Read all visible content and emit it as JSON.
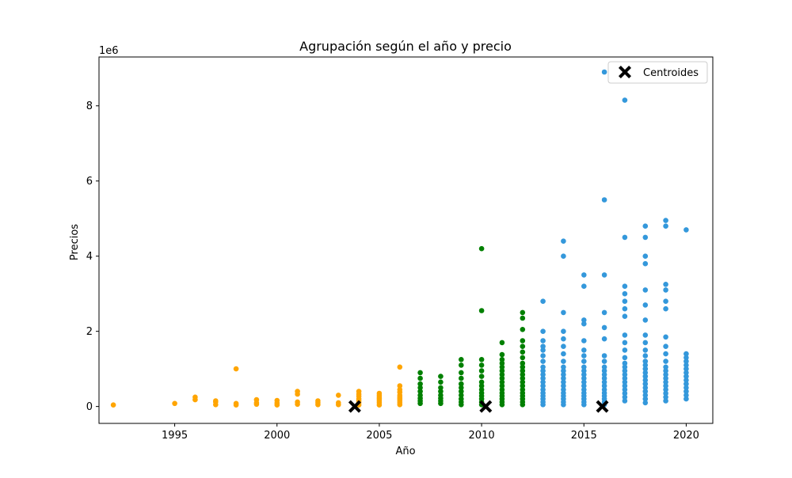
{
  "chart_data": {
    "type": "scatter",
    "title": "Agrupación según el año y precio",
    "xlabel": "Año",
    "ylabel": "Precios",
    "y_offset_label": "1e6",
    "xlim": [
      1991.3,
      2021.3
    ],
    "ylim": [
      -0.45,
      9.3
    ],
    "x_ticks": [
      1995,
      2000,
      2005,
      2010,
      2015,
      2020
    ],
    "y_ticks": [
      0,
      2,
      4,
      6,
      8
    ],
    "grid": false,
    "legend": {
      "placement": "top-right",
      "entries": [
        "Centroides"
      ]
    },
    "colors": {
      "cluster_early": "#ffa500",
      "cluster_mid": "#008000",
      "cluster_late": "#3498db",
      "centroid": "#000000"
    },
    "series": [
      {
        "color": "#ffa500",
        "points": [
          [
            1992,
            0.04
          ],
          [
            1995,
            0.08
          ],
          [
            1996,
            0.18
          ],
          [
            1996,
            0.25
          ],
          [
            1997,
            0.05
          ],
          [
            1997,
            0.12
          ],
          [
            1997,
            0.15
          ],
          [
            1998,
            0.04
          ],
          [
            1998,
            0.08
          ],
          [
            1998,
            1.0
          ],
          [
            1999,
            0.06
          ],
          [
            1999,
            0.1
          ],
          [
            1999,
            0.18
          ],
          [
            2000,
            0.04
          ],
          [
            2000,
            0.09
          ],
          [
            2000,
            0.16
          ],
          [
            2001,
            0.06
          ],
          [
            2001,
            0.12
          ],
          [
            2001,
            0.33
          ],
          [
            2001,
            0.4
          ],
          [
            2002,
            0.05
          ],
          [
            2002,
            0.1
          ],
          [
            2002,
            0.15
          ],
          [
            2003,
            0.05
          ],
          [
            2003,
            0.1
          ],
          [
            2003,
            0.3
          ],
          [
            2004,
            0.04
          ],
          [
            2004,
            0.1
          ],
          [
            2004,
            0.15
          ],
          [
            2004,
            0.2
          ],
          [
            2004,
            0.27
          ],
          [
            2004,
            0.33
          ],
          [
            2004,
            0.4
          ],
          [
            2005,
            0.04
          ],
          [
            2005,
            0.1
          ],
          [
            2005,
            0.15
          ],
          [
            2005,
            0.2
          ],
          [
            2005,
            0.25
          ],
          [
            2005,
            0.3
          ],
          [
            2005,
            0.35
          ],
          [
            2006,
            0.05
          ],
          [
            2006,
            0.1
          ],
          [
            2006,
            0.15
          ],
          [
            2006,
            0.2
          ],
          [
            2006,
            0.25
          ],
          [
            2006,
            0.3
          ],
          [
            2006,
            0.38
          ],
          [
            2006,
            0.45
          ],
          [
            2006,
            0.55
          ],
          [
            2006,
            1.05
          ]
        ]
      },
      {
        "color": "#008000",
        "points": [
          [
            2007,
            0.08
          ],
          [
            2007,
            0.15
          ],
          [
            2007,
            0.22
          ],
          [
            2007,
            0.3
          ],
          [
            2007,
            0.4
          ],
          [
            2007,
            0.5
          ],
          [
            2007,
            0.6
          ],
          [
            2007,
            0.75
          ],
          [
            2007,
            0.9
          ],
          [
            2008,
            0.08
          ],
          [
            2008,
            0.15
          ],
          [
            2008,
            0.22
          ],
          [
            2008,
            0.3
          ],
          [
            2008,
            0.4
          ],
          [
            2008,
            0.5
          ],
          [
            2008,
            0.65
          ],
          [
            2008,
            0.8
          ],
          [
            2009,
            0.05
          ],
          [
            2009,
            0.12
          ],
          [
            2009,
            0.2
          ],
          [
            2009,
            0.3
          ],
          [
            2009,
            0.4
          ],
          [
            2009,
            0.5
          ],
          [
            2009,
            0.6
          ],
          [
            2009,
            0.75
          ],
          [
            2009,
            0.9
          ],
          [
            2009,
            1.1
          ],
          [
            2009,
            1.25
          ],
          [
            2010,
            0.05
          ],
          [
            2010,
            0.12
          ],
          [
            2010,
            0.2
          ],
          [
            2010,
            0.28
          ],
          [
            2010,
            0.36
          ],
          [
            2010,
            0.45
          ],
          [
            2010,
            0.55
          ],
          [
            2010,
            0.65
          ],
          [
            2010,
            0.8
          ],
          [
            2010,
            0.95
          ],
          [
            2010,
            1.1
          ],
          [
            2010,
            1.25
          ],
          [
            2010,
            2.55
          ],
          [
            2010,
            4.2
          ],
          [
            2011,
            0.05
          ],
          [
            2011,
            0.12
          ],
          [
            2011,
            0.2
          ],
          [
            2011,
            0.28
          ],
          [
            2011,
            0.36
          ],
          [
            2011,
            0.45
          ],
          [
            2011,
            0.55
          ],
          [
            2011,
            0.65
          ],
          [
            2011,
            0.75
          ],
          [
            2011,
            0.85
          ],
          [
            2011,
            0.95
          ],
          [
            2011,
            1.05
          ],
          [
            2011,
            1.15
          ],
          [
            2011,
            1.25
          ],
          [
            2011,
            1.38
          ],
          [
            2011,
            1.7
          ],
          [
            2012,
            0.05
          ],
          [
            2012,
            0.12
          ],
          [
            2012,
            0.2
          ],
          [
            2012,
            0.28
          ],
          [
            2012,
            0.36
          ],
          [
            2012,
            0.45
          ],
          [
            2012,
            0.55
          ],
          [
            2012,
            0.65
          ],
          [
            2012,
            0.75
          ],
          [
            2012,
            0.85
          ],
          [
            2012,
            0.95
          ],
          [
            2012,
            1.05
          ],
          [
            2012,
            1.15
          ],
          [
            2012,
            1.3
          ],
          [
            2012,
            1.45
          ],
          [
            2012,
            1.6
          ],
          [
            2012,
            1.75
          ],
          [
            2012,
            2.05
          ],
          [
            2012,
            2.35
          ],
          [
            2012,
            2.5
          ]
        ]
      },
      {
        "color": "#3498db",
        "points": [
          [
            2013,
            0.05
          ],
          [
            2013,
            0.12
          ],
          [
            2013,
            0.2
          ],
          [
            2013,
            0.28
          ],
          [
            2013,
            0.36
          ],
          [
            2013,
            0.45
          ],
          [
            2013,
            0.55
          ],
          [
            2013,
            0.65
          ],
          [
            2013,
            0.75
          ],
          [
            2013,
            0.85
          ],
          [
            2013,
            0.95
          ],
          [
            2013,
            1.05
          ],
          [
            2013,
            1.2
          ],
          [
            2013,
            1.35
          ],
          [
            2013,
            1.5
          ],
          [
            2013,
            1.6
          ],
          [
            2013,
            1.75
          ],
          [
            2013,
            2.0
          ],
          [
            2013,
            2.8
          ],
          [
            2014,
            0.05
          ],
          [
            2014,
            0.12
          ],
          [
            2014,
            0.2
          ],
          [
            2014,
            0.28
          ],
          [
            2014,
            0.36
          ],
          [
            2014,
            0.45
          ],
          [
            2014,
            0.55
          ],
          [
            2014,
            0.65
          ],
          [
            2014,
            0.75
          ],
          [
            2014,
            0.85
          ],
          [
            2014,
            0.95
          ],
          [
            2014,
            1.05
          ],
          [
            2014,
            1.2
          ],
          [
            2014,
            1.4
          ],
          [
            2014,
            1.6
          ],
          [
            2014,
            1.8
          ],
          [
            2014,
            2.0
          ],
          [
            2014,
            2.5
          ],
          [
            2014,
            4.0
          ],
          [
            2014,
            4.4
          ],
          [
            2015,
            0.05
          ],
          [
            2015,
            0.12
          ],
          [
            2015,
            0.2
          ],
          [
            2015,
            0.28
          ],
          [
            2015,
            0.36
          ],
          [
            2015,
            0.45
          ],
          [
            2015,
            0.55
          ],
          [
            2015,
            0.65
          ],
          [
            2015,
            0.75
          ],
          [
            2015,
            0.85
          ],
          [
            2015,
            0.95
          ],
          [
            2015,
            1.05
          ],
          [
            2015,
            1.2
          ],
          [
            2015,
            1.35
          ],
          [
            2015,
            1.5
          ],
          [
            2015,
            1.75
          ],
          [
            2015,
            2.2
          ],
          [
            2015,
            2.3
          ],
          [
            2015,
            3.2
          ],
          [
            2015,
            3.5
          ],
          [
            2016,
            0.05
          ],
          [
            2016,
            0.12
          ],
          [
            2016,
            0.2
          ],
          [
            2016,
            0.28
          ],
          [
            2016,
            0.36
          ],
          [
            2016,
            0.45
          ],
          [
            2016,
            0.55
          ],
          [
            2016,
            0.65
          ],
          [
            2016,
            0.75
          ],
          [
            2016,
            0.85
          ],
          [
            2016,
            0.95
          ],
          [
            2016,
            1.05
          ],
          [
            2016,
            1.2
          ],
          [
            2016,
            1.35
          ],
          [
            2016,
            1.8
          ],
          [
            2016,
            2.1
          ],
          [
            2016,
            2.5
          ],
          [
            2016,
            3.5
          ],
          [
            2016,
            5.5
          ],
          [
            2016,
            8.9
          ],
          [
            2017,
            0.15
          ],
          [
            2017,
            0.25
          ],
          [
            2017,
            0.35
          ],
          [
            2017,
            0.45
          ],
          [
            2017,
            0.55
          ],
          [
            2017,
            0.65
          ],
          [
            2017,
            0.75
          ],
          [
            2017,
            0.85
          ],
          [
            2017,
            0.95
          ],
          [
            2017,
            1.05
          ],
          [
            2017,
            1.15
          ],
          [
            2017,
            1.3
          ],
          [
            2017,
            1.5
          ],
          [
            2017,
            1.7
          ],
          [
            2017,
            1.9
          ],
          [
            2017,
            2.4
          ],
          [
            2017,
            2.6
          ],
          [
            2017,
            2.8
          ],
          [
            2017,
            3.0
          ],
          [
            2017,
            3.2
          ],
          [
            2017,
            4.5
          ],
          [
            2017,
            8.15
          ],
          [
            2018,
            0.1
          ],
          [
            2018,
            0.2
          ],
          [
            2018,
            0.3
          ],
          [
            2018,
            0.4
          ],
          [
            2018,
            0.5
          ],
          [
            2018,
            0.6
          ],
          [
            2018,
            0.7
          ],
          [
            2018,
            0.8
          ],
          [
            2018,
            0.9
          ],
          [
            2018,
            1.0
          ],
          [
            2018,
            1.1
          ],
          [
            2018,
            1.2
          ],
          [
            2018,
            1.35
          ],
          [
            2018,
            1.5
          ],
          [
            2018,
            1.7
          ],
          [
            2018,
            1.9
          ],
          [
            2018,
            2.3
          ],
          [
            2018,
            2.7
          ],
          [
            2018,
            3.1
          ],
          [
            2018,
            3.8
          ],
          [
            2018,
            4.0
          ],
          [
            2018,
            4.5
          ],
          [
            2018,
            4.8
          ],
          [
            2019,
            0.15
          ],
          [
            2019,
            0.25
          ],
          [
            2019,
            0.35
          ],
          [
            2019,
            0.45
          ],
          [
            2019,
            0.55
          ],
          [
            2019,
            0.65
          ],
          [
            2019,
            0.75
          ],
          [
            2019,
            0.85
          ],
          [
            2019,
            0.95
          ],
          [
            2019,
            1.05
          ],
          [
            2019,
            1.2
          ],
          [
            2019,
            1.4
          ],
          [
            2019,
            1.6
          ],
          [
            2019,
            1.85
          ],
          [
            2019,
            2.6
          ],
          [
            2019,
            2.8
          ],
          [
            2019,
            3.1
          ],
          [
            2019,
            3.25
          ],
          [
            2019,
            4.8
          ],
          [
            2019,
            4.95
          ],
          [
            2020,
            0.2
          ],
          [
            2020,
            0.3
          ],
          [
            2020,
            0.4
          ],
          [
            2020,
            0.5
          ],
          [
            2020,
            0.6
          ],
          [
            2020,
            0.7
          ],
          [
            2020,
            0.8
          ],
          [
            2020,
            0.9
          ],
          [
            2020,
            1.0
          ],
          [
            2020,
            1.1
          ],
          [
            2020,
            1.2
          ],
          [
            2020,
            1.3
          ],
          [
            2020,
            1.4
          ],
          [
            2020,
            4.7
          ]
        ]
      }
    ],
    "centroids": {
      "name": "Centroides",
      "color": "#000000",
      "points": [
        [
          2003.8,
          0.0
        ],
        [
          2010.2,
          0.0
        ],
        [
          2015.9,
          0.0
        ]
      ]
    }
  }
}
